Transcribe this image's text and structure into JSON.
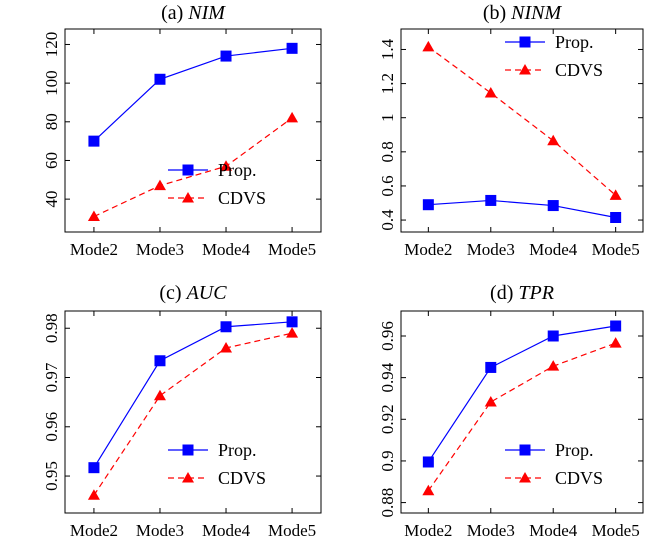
{
  "chart_data": [
    {
      "type": "line",
      "title_prefix": "(a) ",
      "title_metric": "NIM",
      "categories": [
        "Mode2",
        "Mode3",
        "Mode4",
        "Mode5"
      ],
      "ylim": [
        23,
        128
      ],
      "yticks": [
        40,
        60,
        80,
        100,
        120
      ],
      "ytick_labels": [
        "40",
        "60",
        "80",
        "100",
        "120"
      ],
      "legend_position": "bottom-right",
      "series": [
        {
          "name": "Prop.",
          "values": [
            70,
            102,
            114,
            118
          ]
        },
        {
          "name": "CDVS",
          "values": [
            31,
            47,
            57,
            82
          ]
        }
      ]
    },
    {
      "type": "line",
      "title_prefix": "(b) ",
      "title_metric": "NINM",
      "categories": [
        "Mode2",
        "Mode3",
        "Mode4",
        "Mode5"
      ],
      "ylim": [
        0.33,
        1.52
      ],
      "yticks": [
        0.4,
        0.6,
        0.8,
        1.0,
        1.2,
        1.4
      ],
      "ytick_labels": [
        "0.4",
        "0.6",
        "0.8",
        "1",
        "1.2",
        "1.4"
      ],
      "legend_position": "top-right",
      "series": [
        {
          "name": "Prop.",
          "values": [
            0.49,
            0.515,
            0.485,
            0.415
          ]
        },
        {
          "name": "CDVS",
          "values": [
            1.415,
            1.145,
            0.865,
            0.545
          ]
        }
      ]
    },
    {
      "type": "line",
      "title_prefix": "(c) ",
      "title_metric": "AUC",
      "categories": [
        "Mode2",
        "Mode3",
        "Mode4",
        "Mode5"
      ],
      "ylim": [
        0.9425,
        0.9835
      ],
      "yticks": [
        0.95,
        0.96,
        0.97,
        0.98
      ],
      "ytick_labels": [
        "0.95",
        "0.96",
        "0.97",
        "0.98"
      ],
      "legend_position": "bottom-right",
      "series": [
        {
          "name": "Prop.",
          "values": [
            0.9517,
            0.9734,
            0.9803,
            0.9813
          ]
        },
        {
          "name": "CDVS",
          "values": [
            0.9461,
            0.9663,
            0.976,
            0.979
          ]
        }
      ]
    },
    {
      "type": "line",
      "title_prefix": "(d) ",
      "title_metric": "TPR",
      "categories": [
        "Mode2",
        "Mode3",
        "Mode4",
        "Mode5"
      ],
      "ylim": [
        0.875,
        0.972
      ],
      "yticks": [
        0.88,
        0.9,
        0.92,
        0.94,
        0.96
      ],
      "ytick_labels": [
        "0.88",
        "0.9",
        "0.92",
        "0.94",
        "0.96"
      ],
      "legend_position": "bottom-right",
      "series": [
        {
          "name": "Prop.",
          "values": [
            0.8995,
            0.9449,
            0.96,
            0.9648
          ]
        },
        {
          "name": "CDVS",
          "values": [
            0.8857,
            0.9283,
            0.9455,
            0.9566
          ]
        }
      ]
    }
  ],
  "colors": {
    "prop": "#0000ff",
    "cdvs": "#ff0000",
    "axis": "#000000"
  },
  "markers": {
    "prop": "square",
    "cdvs": "triangle"
  }
}
